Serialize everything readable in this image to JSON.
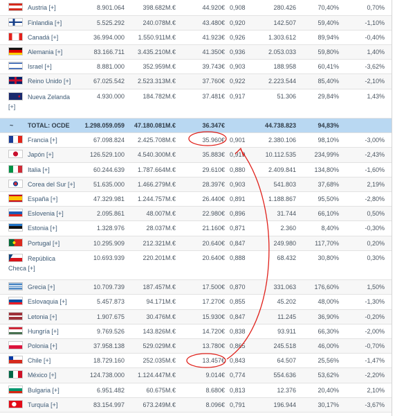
{
  "table": {
    "rows": [
      [
        "Austria [+]",
        "8.901.064",
        "398.682M.€",
        "44.920€",
        "0,908",
        "280.426",
        "70,40%",
        "0,70%"
      ],
      [
        "Finlandia [+]",
        "5.525.292",
        "240.078M.€",
        "43.480€",
        "0,920",
        "142.507",
        "59,40%",
        "-1,10%"
      ],
      [
        "Canadá [+]",
        "36.994.000",
        "1.550.911M.€",
        "41.923€",
        "0,926",
        "1.303.612",
        "89,94%",
        "-0,40%"
      ],
      [
        "Alemania [+]",
        "83.166.711",
        "3.435.210M.€",
        "41.350€",
        "0,936",
        "2.053.033",
        "59,80%",
        "1,40%"
      ],
      [
        "Israel [+]",
        "8.881.000",
        "352.959M.€",
        "39.743€",
        "0,903",
        "188.958",
        "60,41%",
        "-3,62%"
      ],
      [
        "Reino Unido [+]",
        "67.025.542",
        "2.523.313M.€",
        "37.760€",
        "0,922",
        "2.223.544",
        "85,40%",
        "-2,10%"
      ],
      [
        "Nueva Zelanda [+]",
        "4.930.000",
        "184.782M.€",
        "37.481€",
        "0,917",
        "51.306",
        "29,84%",
        "1,43%"
      ],
      [
        "Francia [+]",
        "67.098.824",
        "2.425.708M.€",
        "35.960€",
        "0,901",
        "2.380.106",
        "98,10%",
        "-3,00%"
      ],
      [
        "Japón [+]",
        "126.529.100",
        "4.540.300M.€",
        "35.883€",
        "0,919",
        "10.112.535",
        "234,99%",
        "-2,43%"
      ],
      [
        "Italia [+]",
        "60.244.639",
        "1.787.664M.€",
        "29.610€",
        "0,880",
        "2.409.841",
        "134,80%",
        "-1,60%"
      ],
      [
        "Corea del Sur [+]",
        "51.635.000",
        "1.466.279M.€",
        "28.397€",
        "0,903",
        "541.803",
        "37,68%",
        "2,19%"
      ],
      [
        "España [+]",
        "47.329.981",
        "1.244.757M.€",
        "26.440€",
        "0,891",
        "1.188.867",
        "95,50%",
        "-2,80%"
      ],
      [
        "Eslovenia [+]",
        "2.095.861",
        "48.007M.€",
        "22.980€",
        "0,896",
        "31.744",
        "66,10%",
        "0,50%"
      ],
      [
        "Estonia [+]",
        "1.328.976",
        "28.037M.€",
        "21.160€",
        "0,871",
        "2.360",
        "8,40%",
        "-0,30%"
      ],
      [
        "Portugal [+]",
        "10.295.909",
        "212.321M.€",
        "20.640€",
        "0,847",
        "249.980",
        "117,70%",
        "0,20%"
      ],
      [
        "República Checa [+]",
        "10.693.939",
        "220.201M.€",
        "20.640€",
        "0,888",
        "68.432",
        "30,80%",
        "0,30%"
      ],
      [
        "Grecia [+]",
        "10.709.739",
        "187.457M.€",
        "17.500€",
        "0,870",
        "331.063",
        "176,60%",
        "1,50%"
      ],
      [
        "Eslovaquia [+]",
        "5.457.873",
        "94.171M.€",
        "17.270€",
        "0,855",
        "45.202",
        "48,00%",
        "-1,30%"
      ],
      [
        "Letonia [+]",
        "1.907.675",
        "30.476M.€",
        "15.930€",
        "0,847",
        "11.245",
        "36,90%",
        "-0,20%"
      ],
      [
        "Hungría [+]",
        "9.769.526",
        "143.826M.€",
        "14.720€",
        "0,838",
        "93.911",
        "66,30%",
        "-2,00%"
      ],
      [
        "Polonia [+]",
        "37.958.138",
        "529.029M.€",
        "13.780€",
        "0,865",
        "245.518",
        "46,00%",
        "-0,70%"
      ],
      [
        "Chile [+]",
        "18.729.160",
        "252.035M.€",
        "13.457€",
        "0,843",
        "64.507",
        "25,56%",
        "-1,47%"
      ],
      [
        "México [+]",
        "124.738.000",
        "1.124.447M.€",
        "9.014€",
        "0,774",
        "554.636",
        "53,62%",
        "-2,20%"
      ],
      [
        "Bulgaria [+]",
        "6.951.482",
        "60.675M.€",
        "8.680€",
        "0,813",
        "12.376",
        "20,40%",
        "2,10%"
      ],
      [
        "Turquía [+]",
        "83.154.997",
        "673.249M.€",
        "8.096€",
        "0,791",
        "196.944",
        "30,17%",
        "-3,67%"
      ]
    ],
    "total": {
      "symbol": "~",
      "cells": [
        "TOTAL: OCDE",
        "1.298.059.059",
        "47.180.081M.€",
        "36.347€",
        "44.738.823",
        "94,83%"
      ]
    }
  }
}
